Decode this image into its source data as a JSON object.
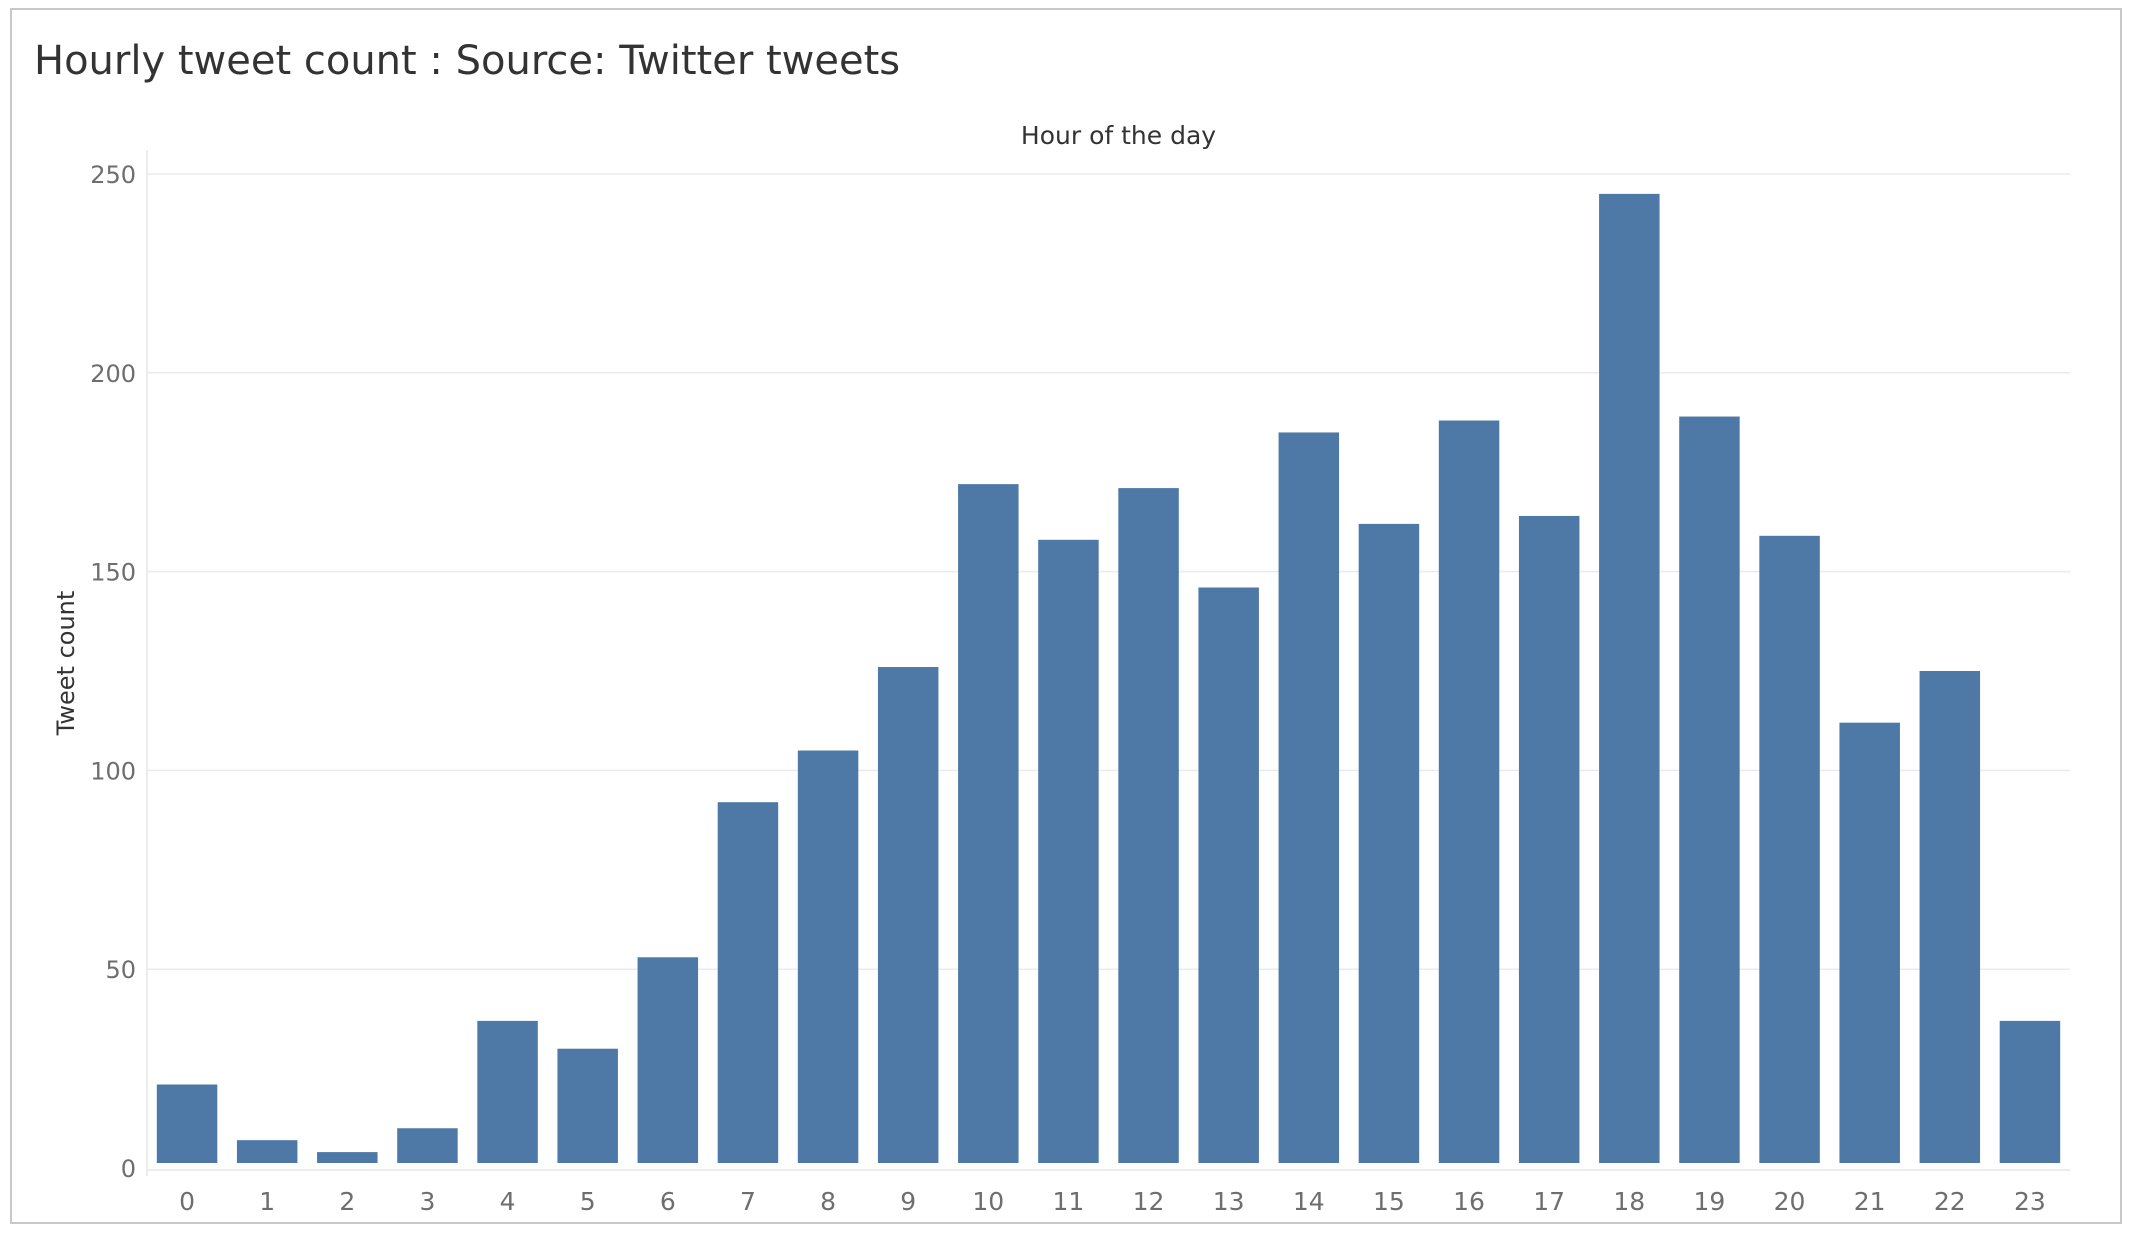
{
  "title": "Hourly tweet count : Source: Twitter tweets",
  "chart_data": {
    "type": "bar",
    "title": "Hourly tweet count : Source: Twitter tweets",
    "xlabel": "Hour of the day",
    "ylabel": "Tweet count",
    "categories": [
      "0",
      "1",
      "2",
      "3",
      "4",
      "5",
      "6",
      "7",
      "8",
      "9",
      "10",
      "11",
      "12",
      "13",
      "14",
      "15",
      "16",
      "17",
      "18",
      "19",
      "20",
      "21",
      "22",
      "23"
    ],
    "values": [
      21,
      7,
      4,
      10,
      37,
      30,
      53,
      92,
      105,
      126,
      172,
      158,
      171,
      146,
      185,
      162,
      188,
      164,
      245,
      189,
      159,
      112,
      125,
      37
    ],
    "yticks": [
      0,
      50,
      100,
      150,
      200,
      250
    ],
    "ylim": [
      0,
      250
    ],
    "grid": true,
    "legend": "none",
    "bar_color": "#4e79a7"
  }
}
